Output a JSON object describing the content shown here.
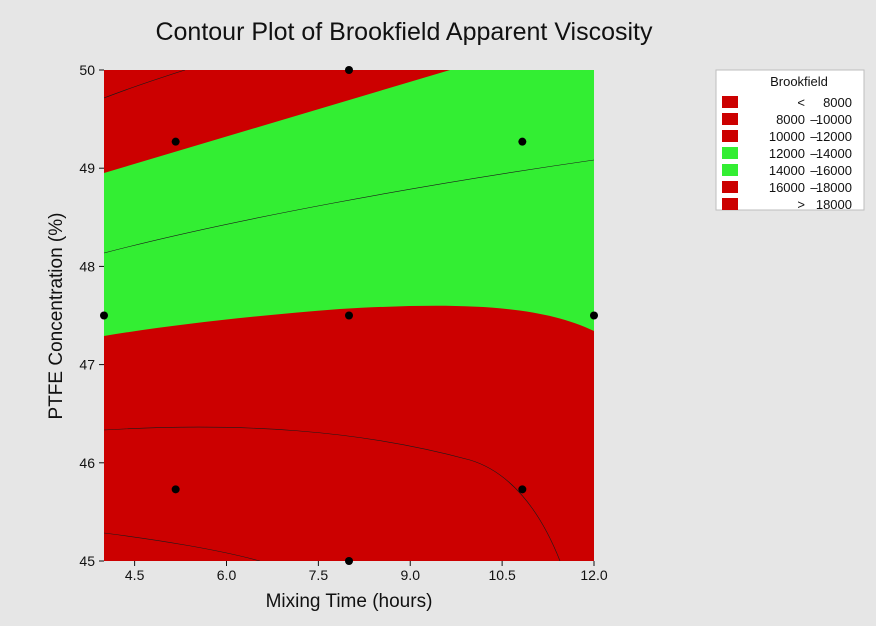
{
  "chart_data": {
    "type": "contour",
    "title": "Contour Plot of Brookfield Apparent Viscosity",
    "xlabel": "Mixing Time (hours)",
    "ylabel": "PTFE Concentration (%)",
    "xlim": [
      4.0,
      12.0
    ],
    "ylim": [
      45,
      50
    ],
    "x_ticks": [
      "4.5",
      "6.0",
      "7.5",
      "9.0",
      "10.5",
      "12.0"
    ],
    "y_ticks": [
      "45",
      "46",
      "47",
      "48",
      "49",
      "50"
    ],
    "design_points": [
      {
        "x": 8.0,
        "y": 50.0
      },
      {
        "x": 5.17,
        "y": 49.27
      },
      {
        "x": 10.83,
        "y": 49.27
      },
      {
        "x": 4.0,
        "y": 47.5
      },
      {
        "x": 8.0,
        "y": 47.5
      },
      {
        "x": 12.0,
        "y": 47.5
      },
      {
        "x": 5.17,
        "y": 45.73
      },
      {
        "x": 10.83,
        "y": 45.73
      },
      {
        "x": 8.0,
        "y": 45.0
      }
    ],
    "regions": [
      {
        "band": "> 18000",
        "color": "#cc0000"
      },
      {
        "band": "16000 – 18000",
        "color": "#cc0000"
      },
      {
        "band": "14000 – 16000",
        "color": "#33ee33"
      },
      {
        "band": "12000 – 14000",
        "color": "#33ee33"
      }
    ],
    "legend": {
      "title": "Brookfield",
      "position": "right",
      "entries": [
        {
          "low": "<",
          "high": "8000",
          "color": "#cc0000"
        },
        {
          "low": "8000",
          "high": "10000",
          "color": "#cc0000"
        },
        {
          "low": "10000",
          "high": "12000",
          "color": "#cc0000"
        },
        {
          "low": "12000",
          "high": "14000",
          "color": "#33ee33"
        },
        {
          "low": "14000",
          "high": "16000",
          "color": "#33ee33"
        },
        {
          "low": "16000",
          "high": "18000",
          "color": "#cc0000"
        },
        {
          "low": ">",
          "high": "18000",
          "color": "#cc0000"
        }
      ]
    },
    "colors": {
      "red": "#cc0000",
      "green": "#33ee33",
      "background": "#e6e6e6"
    }
  }
}
